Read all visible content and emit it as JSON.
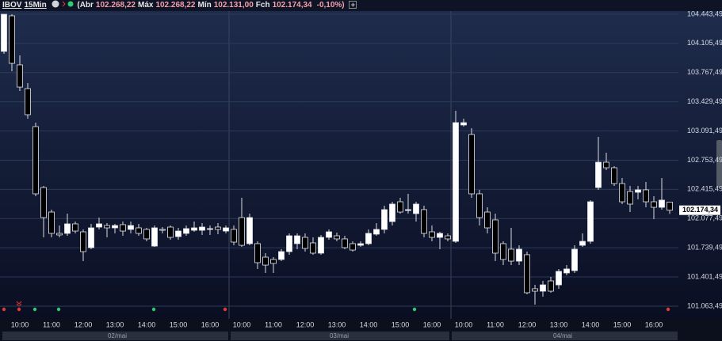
{
  "header": {
    "symbol": "IBOV",
    "interval": "15Min",
    "fields": [
      {
        "label": "(Abr",
        "value": "102.268,22"
      },
      {
        "label": "Máx",
        "value": "102.268,22"
      },
      {
        "label": "Mín",
        "value": "102.131,00"
      },
      {
        "label": "Fch",
        "value": "102.174,34"
      }
    ],
    "change": "-0,10%)"
  },
  "chart_data": {
    "type": "candlestick",
    "ylim": [
      100944.0,
      104608.0
    ],
    "yticks": [
      {
        "value": 104443.49,
        "label": "104.443,49"
      },
      {
        "value": 104105.49,
        "label": "104.105,49"
      },
      {
        "value": 103767.49,
        "label": "103.767,49"
      },
      {
        "value": 103429.49,
        "label": "103.429,49"
      },
      {
        "value": 103091.49,
        "label": "103.091,49"
      },
      {
        "value": 102753.49,
        "label": "102.753,49"
      },
      {
        "value": 102415.49,
        "label": "102.415,49"
      },
      {
        "value": 102077.49,
        "label": "102.077,49"
      },
      {
        "value": 101739.49,
        "label": "101.739,49"
      },
      {
        "value": 101401.49,
        "label": "101.401,49"
      },
      {
        "value": 101063.49,
        "label": "101.063,49"
      }
    ],
    "last_price": {
      "value": 102174.34,
      "label": "102.174,34"
    },
    "categories": [
      null,
      null,
      "10:00",
      null,
      null,
      null,
      "11:00",
      null,
      null,
      null,
      "12:00",
      null,
      null,
      null,
      "13:00",
      null,
      null,
      null,
      "14:00",
      null,
      null,
      null,
      "15:00",
      null,
      null,
      null,
      "16:00",
      null,
      null,
      null,
      "10:00",
      null,
      null,
      null,
      "11:00",
      null,
      null,
      null,
      "12:00",
      null,
      null,
      null,
      "13:00",
      null,
      null,
      null,
      "14:00",
      null,
      null,
      null,
      "15:00",
      null,
      null,
      null,
      "16:00",
      null,
      null,
      null,
      "10:00",
      null,
      null,
      null,
      "11:00",
      null,
      null,
      null,
      "12:00",
      null,
      null,
      null,
      "13:00",
      null,
      null,
      null,
      "14:00",
      null,
      null,
      null,
      "15:00",
      null,
      null,
      null,
      "16:00",
      null,
      null
    ],
    "days": [
      "02/mai",
      "03/mai",
      "04/mai"
    ],
    "open": [
      104013,
      104425,
      103857,
      103582,
      103142,
      102437,
      102153,
      101906,
      101906,
      102016,
      101924,
      101741,
      101979,
      101997,
      101970,
      102007,
      101952,
      101970,
      101952,
      101759,
      101952,
      101979,
      101869,
      101906,
      101942,
      101942,
      101952,
      101979,
      101933,
      101952,
      102089,
      101787,
      101787,
      101631,
      101604,
      101604,
      101695,
      101787,
      101860,
      101796,
      101677,
      101860,
      101878,
      101842,
      101787,
      101768,
      101787,
      101897,
      101952,
      102043,
      102272,
      102171,
      102135,
      102181,
      101924,
      101860,
      101878,
      101814,
      103161,
      103051,
      102364,
      102153,
      102062,
      101787,
      101723,
      101585,
      101659,
      101265,
      101237,
      101356,
      101310,
      101448,
      101475,
      101768,
      101814,
      102437,
      102730,
      102666,
      102483,
      102391,
      102382,
      102410,
      102272,
      102208,
      102268.22
    ],
    "high": [
      104443,
      104443,
      103967,
      103646,
      103188,
      102455,
      102181,
      101997,
      102135,
      102043,
      101952,
      102016,
      102089,
      102025,
      102016,
      102043,
      102043,
      102016,
      101970,
      101997,
      101979,
      101997,
      101970,
      101997,
      102043,
      102025,
      101997,
      102025,
      101997,
      101997,
      102318,
      102135,
      101814,
      101677,
      101631,
      101723,
      101906,
      101906,
      101906,
      101860,
      101888,
      101952,
      101915,
      101878,
      101814,
      101814,
      101952,
      102025,
      102226,
      102272,
      102318,
      102364,
      102272,
      102226,
      101997,
      101924,
      101906,
      103326,
      103234,
      103124,
      102410,
      102208,
      102135,
      101814,
      101970,
      101768,
      101695,
      101310,
      101356,
      101402,
      101494,
      101539,
      101768,
      101906,
      102291,
      103023,
      102840,
      102684,
      102547,
      102455,
      102455,
      102501,
      102336,
      102547,
      102268.22
    ],
    "low": [
      103985,
      103784,
      103555,
      103234,
      102336,
      101860,
      101860,
      101860,
      101878,
      101906,
      101585,
      101723,
      101952,
      101860,
      101906,
      101878,
      101906,
      101878,
      101814,
      101750,
      101906,
      101832,
      101832,
      101878,
      101924,
      101888,
      101888,
      101897,
      101906,
      101768,
      101750,
      101768,
      101494,
      101448,
      101448,
      101585,
      101659,
      101723,
      101695,
      101659,
      101659,
      101832,
      101814,
      101723,
      101695,
      101750,
      101768,
      101878,
      101906,
      101997,
      102135,
      102135,
      102043,
      101860,
      101814,
      101723,
      101814,
      101796,
      103142,
      102318,
      101997,
      101906,
      101585,
      101539,
      101539,
      101539,
      101200,
      101081,
      101173,
      101219,
      101265,
      101420,
      101448,
      101750,
      101787,
      102410,
      102639,
      102455,
      102245,
      102153,
      102300,
      102208,
      102071,
      102181,
      102131
    ],
    "close": [
      104443,
      103875,
      103600,
      103280,
      102364,
      102089,
      101906,
      101888,
      102016,
      101933,
      101695,
      101970,
      102016,
      101970,
      101997,
      101933,
      101997,
      101906,
      101842,
      101970,
      101942,
      101860,
      101933,
      101961,
      101970,
      101979,
      101961,
      101952,
      101970,
      101805,
      101768,
      102089,
      101567,
      101539,
      101558,
      101695,
      101878,
      101878,
      101732,
      101677,
      101860,
      101924,
      101842,
      101741,
      101713,
      101787,
      101906,
      101952,
      102181,
      102245,
      102153,
      102181,
      102245,
      101906,
      101860,
      101906,
      101842,
      103188,
      103188,
      102364,
      102089,
      101970,
      101677,
      101604,
      101585,
      101723,
      101219,
      101237,
      101310,
      101237,
      101466,
      101494,
      101723,
      101814,
      102272,
      102730,
      102666,
      102483,
      102272,
      102245,
      102410,
      102272,
      102208,
      102291,
      102174.34
    ],
    "grid": true,
    "up_color": "#ffffff",
    "down_color": "#000000"
  }
}
